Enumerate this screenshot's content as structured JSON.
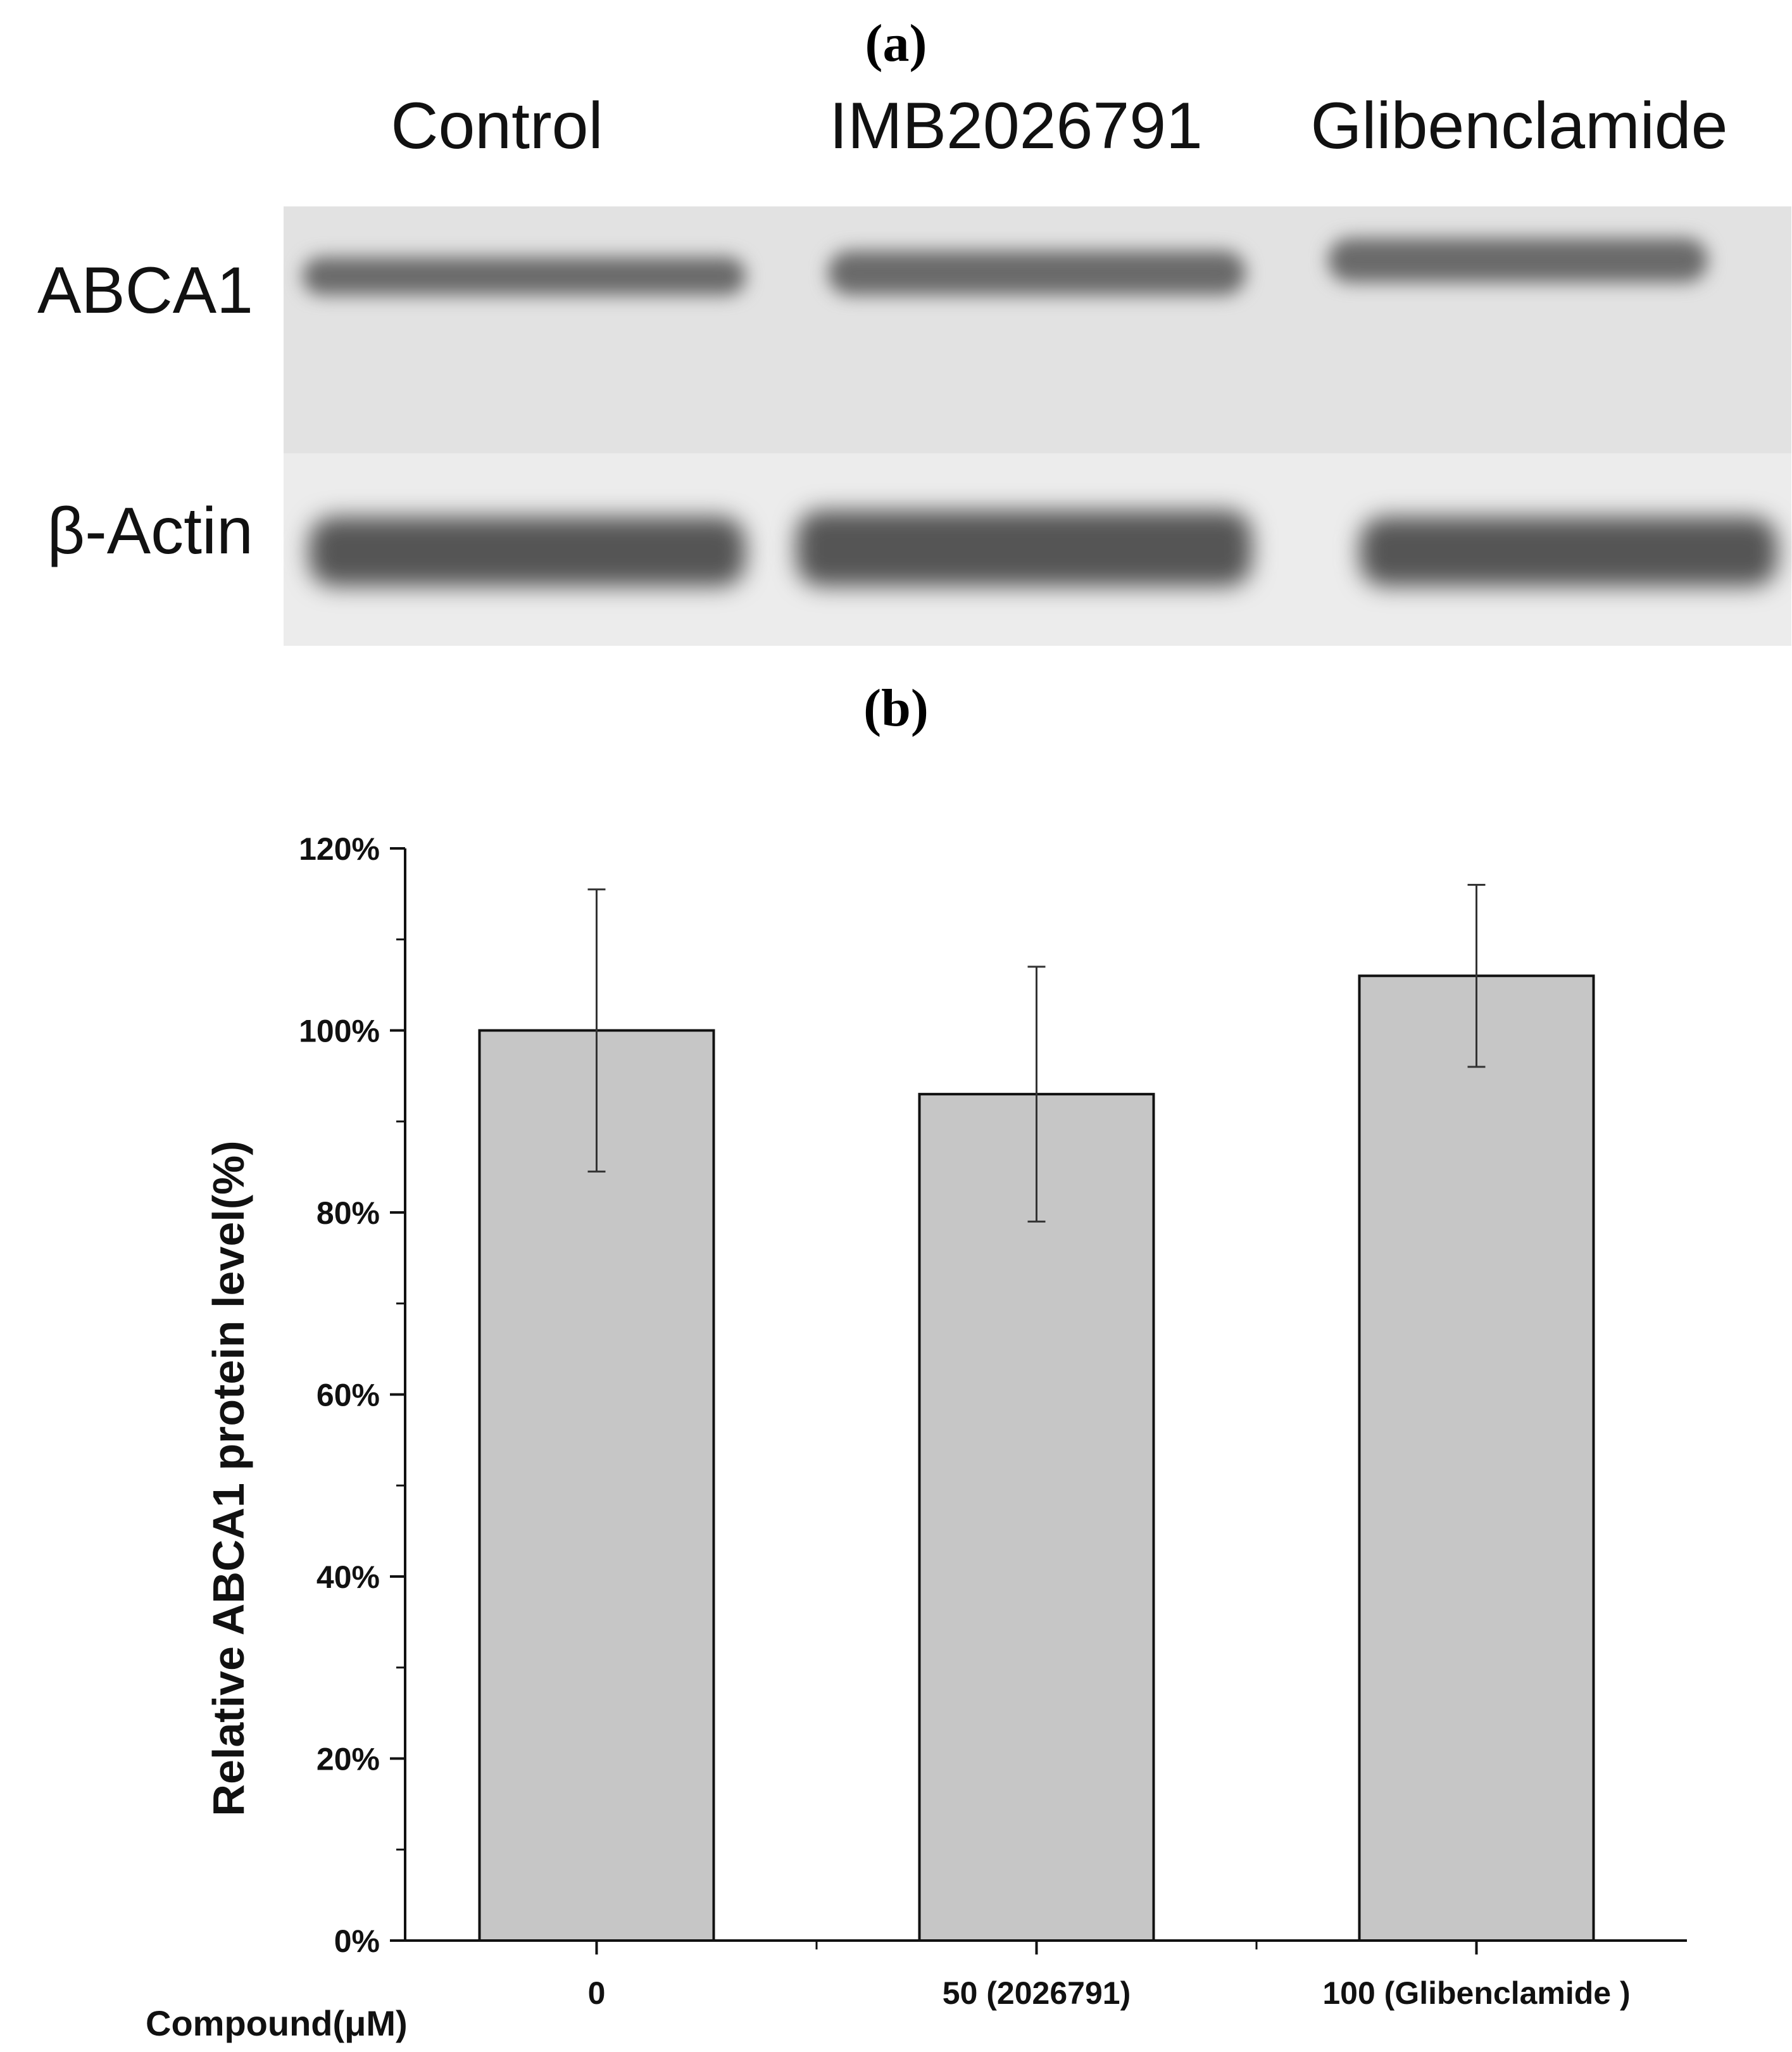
{
  "panels": {
    "a_label": "(a)",
    "b_label": "(b)"
  },
  "blot": {
    "lanes": [
      "Control",
      "IMB2026791",
      "Glibenclamide"
    ],
    "rows": [
      "ABCA1",
      "β-Actin"
    ]
  },
  "chart_data": {
    "type": "bar",
    "categories": [
      "0",
      "50 (2026791)",
      "100 (Glibenclamide )"
    ],
    "values": [
      100,
      93,
      106
    ],
    "error": [
      15.5,
      14,
      10
    ],
    "xlabel": "Compound(μM)",
    "ylabel": "Relative  ABCA1 protein level(%)",
    "ylim": [
      0,
      120
    ],
    "yticks": [
      "0%",
      "20%",
      "40%",
      "60%",
      "80%",
      "100%",
      "120%"
    ],
    "bar_color": "#c6c6c6",
    "grid": false
  }
}
